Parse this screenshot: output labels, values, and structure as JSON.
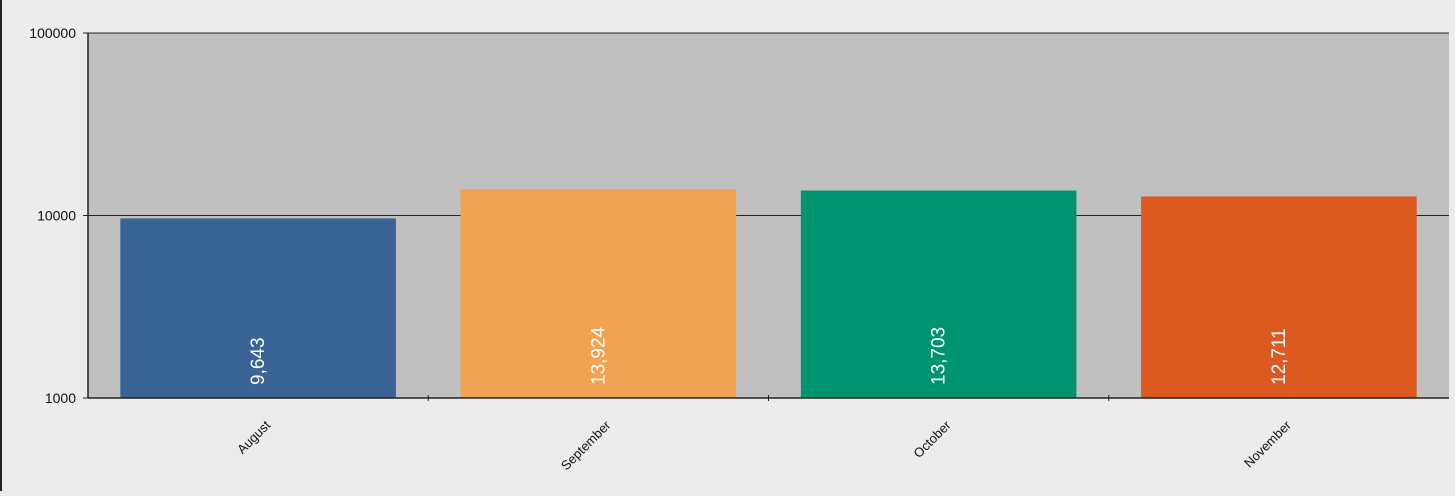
{
  "chart_data": {
    "type": "bar",
    "title": "",
    "xlabel": "",
    "ylabel": "",
    "y_scale": "log",
    "ylim": [
      1000,
      100000
    ],
    "y_ticks": [
      {
        "value": 1000,
        "label": "1000"
      },
      {
        "value": 10000,
        "label": "10000"
      },
      {
        "value": 100000,
        "label": "100000"
      }
    ],
    "categories": [
      "August",
      "September",
      "October",
      "November"
    ],
    "values": [
      9643,
      13924,
      13703,
      12711
    ],
    "value_labels": [
      "9,643",
      "13,924",
      "13,703",
      "12,711"
    ],
    "colors": [
      "#3a6496",
      "#efa353",
      "#00936f",
      "#dc5a20"
    ],
    "grid": true,
    "legend": "none",
    "plot_background": "#c0c0c0",
    "page_background": "#ececec"
  }
}
